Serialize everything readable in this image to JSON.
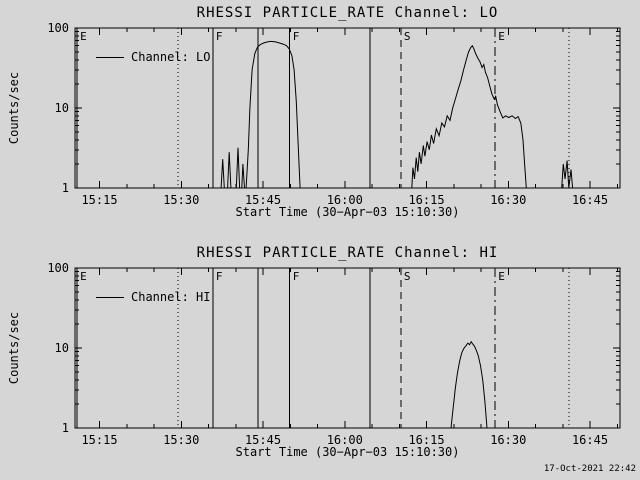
{
  "figure": {
    "background": "#d6d6d6",
    "foreground": "#000000"
  },
  "footer": {
    "timestamp": "17-Oct-2021 22:42"
  },
  "chart_data": [
    {
      "type": "line",
      "title": "RHESSI PARTICLE_RATE Channel: LO",
      "xlabel": "Start Time (30−Apr−03 15:10:30)",
      "ylabel": "Counts/sec",
      "legend": "Channel: LO",
      "yscale": "log",
      "ylim": [
        1,
        100
      ],
      "yticks": [
        {
          "v": 1,
          "label": "1"
        },
        {
          "v": 10,
          "label": "10"
        },
        {
          "v": 100,
          "label": "100"
        }
      ],
      "x_unit": "minutes after 15:10:30",
      "xlim": [
        0,
        100
      ],
      "xminor_step": 5,
      "xticks": [
        {
          "x": 4.5,
          "label": "15:15"
        },
        {
          "x": 19.5,
          "label": "15:30"
        },
        {
          "x": 34.5,
          "label": "15:45"
        },
        {
          "x": 49.5,
          "label": "16:00"
        },
        {
          "x": 64.5,
          "label": "16:15"
        },
        {
          "x": 79.5,
          "label": "16:30"
        },
        {
          "x": 94.5,
          "label": "16:45"
        }
      ],
      "events": [
        {
          "x": 0.4,
          "label": "E",
          "style": "solid"
        },
        {
          "x": 18.9,
          "label": "",
          "style": "dotted"
        },
        {
          "x": 25.3,
          "label": "F",
          "style": "solid"
        },
        {
          "x": 33.6,
          "label": "",
          "style": "solid"
        },
        {
          "x": 39.4,
          "label": "F",
          "style": "solid"
        },
        {
          "x": 54.1,
          "label": "",
          "style": "solid"
        },
        {
          "x": 59.8,
          "label": "S",
          "style": "dashed"
        },
        {
          "x": 77.1,
          "label": "E",
          "style": "dashdot"
        },
        {
          "x": 90.6,
          "label": "",
          "style": "dotted"
        }
      ],
      "series": [
        {
          "name": "Channel: LO",
          "points": [
            [
              0,
              1
            ],
            [
              26.8,
              1
            ],
            [
              27.1,
              2.3
            ],
            [
              27.4,
              1
            ],
            [
              28,
              1
            ],
            [
              28.3,
              2.8
            ],
            [
              28.6,
              1
            ],
            [
              29.6,
              1
            ],
            [
              29.9,
              3.2
            ],
            [
              30.2,
              1
            ],
            [
              30.6,
              1
            ],
            [
              30.8,
              2
            ],
            [
              31.1,
              1
            ],
            [
              31.4,
              1
            ],
            [
              31.8,
              3
            ],
            [
              32.1,
              10
            ],
            [
              32.5,
              30
            ],
            [
              33,
              48
            ],
            [
              33.5,
              58
            ],
            [
              34,
              62
            ],
            [
              34.6,
              65
            ],
            [
              35.3,
              67
            ],
            [
              36,
              68
            ],
            [
              36.8,
              67
            ],
            [
              37.5,
              65
            ],
            [
              38.2,
              63
            ],
            [
              38.8,
              60
            ],
            [
              39.3,
              55
            ],
            [
              39.8,
              45
            ],
            [
              40.2,
              30
            ],
            [
              40.6,
              12
            ],
            [
              41,
              3
            ],
            [
              41.3,
              1
            ],
            [
              61.8,
              1
            ],
            [
              62,
              1.8
            ],
            [
              62.3,
              1.3
            ],
            [
              62.6,
              2.4
            ],
            [
              62.9,
              1.6
            ],
            [
              63.2,
              2.8
            ],
            [
              63.5,
              2
            ],
            [
              63.9,
              3.4
            ],
            [
              64.2,
              2.5
            ],
            [
              64.6,
              3.8
            ],
            [
              65,
              3
            ],
            [
              65.4,
              4.6
            ],
            [
              65.8,
              3.6
            ],
            [
              66.3,
              5.5
            ],
            [
              66.8,
              4.5
            ],
            [
              67.3,
              6.5
            ],
            [
              67.8,
              5.8
            ],
            [
              68.3,
              8
            ],
            [
              68.8,
              7
            ],
            [
              69.3,
              10
            ],
            [
              69.8,
              13
            ],
            [
              70.3,
              17
            ],
            [
              70.8,
              22
            ],
            [
              71.3,
              30
            ],
            [
              71.8,
              40
            ],
            [
              72.2,
              50
            ],
            [
              72.6,
              57
            ],
            [
              72.9,
              60
            ],
            [
              73.2,
              55
            ],
            [
              73.5,
              48
            ],
            [
              73.9,
              42
            ],
            [
              74.3,
              38
            ],
            [
              74.7,
              32
            ],
            [
              75,
              35
            ],
            [
              75.3,
              28
            ],
            [
              75.7,
              24
            ],
            [
              76.1,
              19
            ],
            [
              76.5,
              15
            ],
            [
              76.9,
              13
            ],
            [
              77.2,
              14
            ],
            [
              77.5,
              11
            ],
            [
              78,
              9
            ],
            [
              78.5,
              7.5
            ],
            [
              79,
              8
            ],
            [
              79.6,
              7.6
            ],
            [
              80.2,
              8
            ],
            [
              80.8,
              7.4
            ],
            [
              81.3,
              7.8
            ],
            [
              81.8,
              6.5
            ],
            [
              82.2,
              4
            ],
            [
              82.5,
              2
            ],
            [
              82.8,
              1
            ],
            [
              89.3,
              1
            ],
            [
              89.6,
              2
            ],
            [
              89.9,
              1.3
            ],
            [
              90.3,
              2.2
            ],
            [
              90.6,
              1
            ],
            [
              91,
              1.7
            ],
            [
              91.3,
              1
            ],
            [
              99.8,
              1
            ]
          ]
        }
      ]
    },
    {
      "type": "line",
      "title": "RHESSI PARTICLE_RATE Channel: HI",
      "xlabel": "Start Time (30−Apr−03 15:10:30)",
      "ylabel": "Counts/sec",
      "legend": "Channel: HI",
      "yscale": "log",
      "ylim": [
        1,
        100
      ],
      "yticks": [
        {
          "v": 1,
          "label": "1"
        },
        {
          "v": 10,
          "label": "10"
        },
        {
          "v": 100,
          "label": "100"
        }
      ],
      "x_unit": "minutes after 15:10:30",
      "xlim": [
        0,
        100
      ],
      "xminor_step": 5,
      "xticks": [
        {
          "x": 4.5,
          "label": "15:15"
        },
        {
          "x": 19.5,
          "label": "15:30"
        },
        {
          "x": 34.5,
          "label": "15:45"
        },
        {
          "x": 49.5,
          "label": "16:00"
        },
        {
          "x": 64.5,
          "label": "16:15"
        },
        {
          "x": 79.5,
          "label": "16:30"
        },
        {
          "x": 94.5,
          "label": "16:45"
        }
      ],
      "events": [
        {
          "x": 0.4,
          "label": "E",
          "style": "solid"
        },
        {
          "x": 18.9,
          "label": "",
          "style": "dotted"
        },
        {
          "x": 25.3,
          "label": "F",
          "style": "solid"
        },
        {
          "x": 33.6,
          "label": "",
          "style": "solid"
        },
        {
          "x": 39.4,
          "label": "F",
          "style": "solid"
        },
        {
          "x": 54.1,
          "label": "",
          "style": "solid"
        },
        {
          "x": 59.8,
          "label": "S",
          "style": "dashed"
        },
        {
          "x": 77.1,
          "label": "E",
          "style": "dashdot"
        },
        {
          "x": 90.6,
          "label": "",
          "style": "dotted"
        }
      ],
      "series": [
        {
          "name": "Channel: HI",
          "points": [
            [
              0,
              1
            ],
            [
              69,
              1
            ],
            [
              69.4,
              1.8
            ],
            [
              69.8,
              3.2
            ],
            [
              70.2,
              5
            ],
            [
              70.6,
              7
            ],
            [
              71,
              8.8
            ],
            [
              71.4,
              10
            ],
            [
              71.8,
              10.8
            ],
            [
              72.1,
              11.5
            ],
            [
              72.4,
              11
            ],
            [
              72.7,
              12
            ],
            [
              73,
              11.2
            ],
            [
              73.3,
              10.5
            ],
            [
              73.6,
              9.5
            ],
            [
              74,
              8
            ],
            [
              74.4,
              6
            ],
            [
              74.8,
              4
            ],
            [
              75.2,
              2.2
            ],
            [
              75.6,
              1
            ],
            [
              99.8,
              1
            ]
          ]
        }
      ]
    }
  ]
}
